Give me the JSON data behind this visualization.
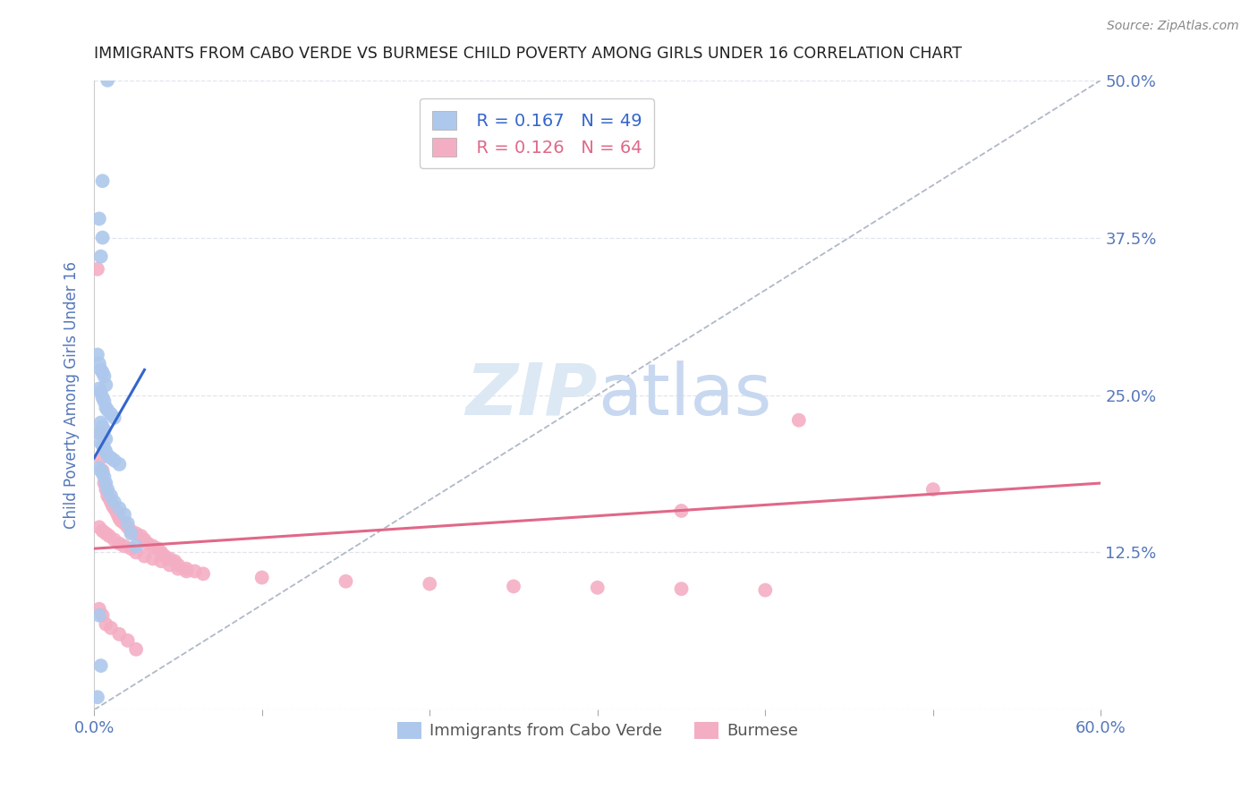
{
  "title": "IMMIGRANTS FROM CABO VERDE VS BURMESE CHILD POVERTY AMONG GIRLS UNDER 16 CORRELATION CHART",
  "source": "Source: ZipAtlas.com",
  "ylabel": "Child Poverty Among Girls Under 16",
  "xlim": [
    0.0,
    0.6
  ],
  "ylim": [
    0.0,
    0.5
  ],
  "legend_blue_r": "R = 0.167",
  "legend_blue_n": "N = 49",
  "legend_pink_r": "R = 0.126",
  "legend_pink_n": "N = 64",
  "legend_label_blue": "Immigrants from Cabo Verde",
  "legend_label_pink": "Burmese",
  "blue_scatter_color": "#adc8ec",
  "blue_line_color": "#3366cc",
  "pink_scatter_color": "#f4aec4",
  "pink_line_color": "#e06888",
  "ref_line_color": "#b0b8c8",
  "grid_color": "#e0e4ec",
  "background_color": "#ffffff",
  "title_color": "#222222",
  "axis_label_color": "#5577bb",
  "tick_label_color": "#5577bb",
  "watermark_color": "#dce8f4",
  "cabo_verde_x": [
    0.008,
    0.005,
    0.003,
    0.005,
    0.004,
    0.002,
    0.003,
    0.004,
    0.005,
    0.006,
    0.007,
    0.003,
    0.004,
    0.005,
    0.006,
    0.007,
    0.008,
    0.01,
    0.012,
    0.004,
    0.005,
    0.006,
    0.003,
    0.005,
    0.007,
    0.004,
    0.005,
    0.006,
    0.007,
    0.008,
    0.01,
    0.012,
    0.015,
    0.003,
    0.004,
    0.005,
    0.006,
    0.007,
    0.008,
    0.01,
    0.012,
    0.015,
    0.018,
    0.02,
    0.022,
    0.025,
    0.003,
    0.004,
    0.002
  ],
  "cabo_verde_y": [
    0.5,
    0.42,
    0.39,
    0.375,
    0.36,
    0.282,
    0.275,
    0.27,
    0.268,
    0.265,
    0.258,
    0.255,
    0.252,
    0.248,
    0.245,
    0.24,
    0.238,
    0.235,
    0.232,
    0.228,
    0.225,
    0.222,
    0.22,
    0.218,
    0.215,
    0.212,
    0.21,
    0.208,
    0.205,
    0.202,
    0.2,
    0.198,
    0.195,
    0.192,
    0.19,
    0.188,
    0.185,
    0.18,
    0.175,
    0.17,
    0.165,
    0.16,
    0.155,
    0.148,
    0.14,
    0.13,
    0.075,
    0.035,
    0.01
  ],
  "burmese_x": [
    0.002,
    0.003,
    0.004,
    0.005,
    0.006,
    0.007,
    0.008,
    0.009,
    0.01,
    0.011,
    0.012,
    0.013,
    0.014,
    0.015,
    0.016,
    0.018,
    0.02,
    0.022,
    0.025,
    0.028,
    0.03,
    0.032,
    0.035,
    0.038,
    0.04,
    0.042,
    0.045,
    0.048,
    0.05,
    0.055,
    0.06,
    0.065,
    0.003,
    0.005,
    0.007,
    0.009,
    0.012,
    0.015,
    0.018,
    0.022,
    0.025,
    0.03,
    0.035,
    0.04,
    0.045,
    0.05,
    0.055,
    0.1,
    0.15,
    0.2,
    0.25,
    0.3,
    0.35,
    0.4,
    0.003,
    0.005,
    0.007,
    0.01,
    0.015,
    0.02,
    0.025,
    0.35,
    0.5,
    0.42
  ],
  "burmese_y": [
    0.35,
    0.22,
    0.2,
    0.19,
    0.18,
    0.175,
    0.17,
    0.168,
    0.165,
    0.162,
    0.16,
    0.158,
    0.155,
    0.152,
    0.15,
    0.148,
    0.145,
    0.142,
    0.14,
    0.138,
    0.135,
    0.132,
    0.13,
    0.128,
    0.125,
    0.122,
    0.12,
    0.118,
    0.115,
    0.112,
    0.11,
    0.108,
    0.145,
    0.142,
    0.14,
    0.138,
    0.135,
    0.132,
    0.13,
    0.128,
    0.125,
    0.122,
    0.12,
    0.118,
    0.115,
    0.112,
    0.11,
    0.105,
    0.102,
    0.1,
    0.098,
    0.097,
    0.096,
    0.095,
    0.08,
    0.075,
    0.068,
    0.065,
    0.06,
    0.055,
    0.048,
    0.158,
    0.175,
    0.23
  ],
  "blue_trendline_x": [
    0.0,
    0.03
  ],
  "blue_trendline_y": [
    0.2,
    0.27
  ],
  "pink_trendline_x": [
    0.0,
    0.6
  ],
  "pink_trendline_y": [
    0.128,
    0.18
  ],
  "ref_line_x": [
    0.0,
    0.6
  ],
  "ref_line_y": [
    0.0,
    0.5
  ]
}
